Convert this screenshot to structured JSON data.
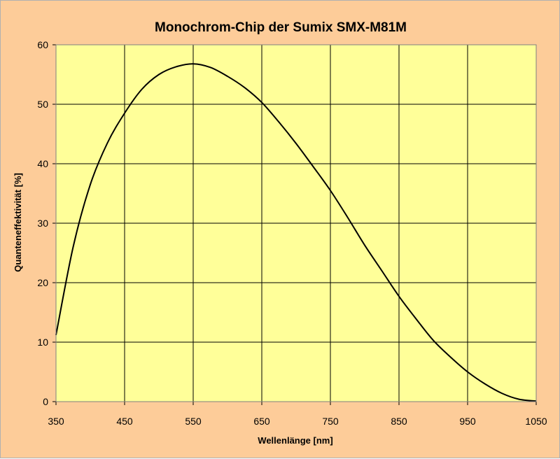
{
  "colors": {
    "background": "#fdcc99",
    "plot_area": "#ffff99",
    "grid": "#000000",
    "curve": "#000000"
  },
  "chart_data": {
    "type": "line",
    "title": "Monochrom-Chip der Sumix SMX-M81M",
    "xlabel": "Wellenlänge [nm]",
    "ylabel": "Quanteneffektivität [%]",
    "xlim": [
      350,
      1050
    ],
    "ylim": [
      0,
      60
    ],
    "xticks": [
      350,
      450,
      550,
      650,
      750,
      850,
      950,
      1050
    ],
    "yticks": [
      0,
      10,
      20,
      30,
      40,
      50,
      60
    ],
    "xtick_labels": [
      "350",
      "450",
      "550",
      "650",
      "750",
      "850",
      "950",
      "1050"
    ],
    "ytick_labels": [
      "0",
      "10",
      "20",
      "30",
      "40",
      "50",
      "60"
    ],
    "grid": true,
    "legend": false,
    "series": [
      {
        "x": [
          350,
          375,
          400,
          425,
          450,
          475,
          500,
          525,
          550,
          575,
          600,
          625,
          650,
          675,
          700,
          725,
          750,
          775,
          800,
          825,
          850,
          875,
          900,
          925,
          950,
          975,
          1000,
          1025,
          1050
        ],
        "y": [
          11.2,
          26.0,
          36.5,
          43.5,
          48.5,
          52.5,
          55.0,
          56.3,
          56.8,
          56.2,
          54.7,
          52.8,
          50.3,
          47.0,
          43.4,
          39.5,
          35.5,
          31.0,
          26.3,
          22.0,
          17.7,
          13.9,
          10.3,
          7.5,
          5.0,
          3.0,
          1.4,
          0.4,
          0.1
        ]
      }
    ]
  }
}
